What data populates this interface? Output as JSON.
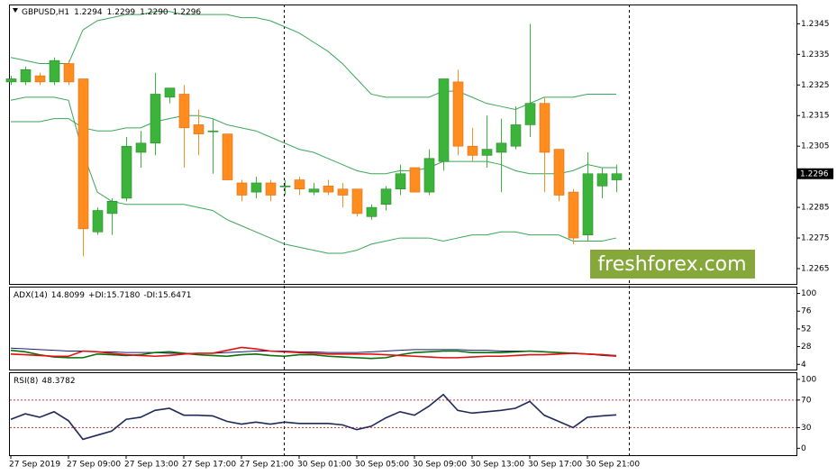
{
  "chart_data": [
    {
      "type": "candlestick",
      "title": "GBPUSD,H1",
      "last_labels": {
        "open": "1.2294",
        "high": "1.2299",
        "low": "1.2290",
        "close": "1.2296"
      },
      "categories": [
        "27 Sep 2019",
        null,
        null,
        null,
        "27 Sep 09:00",
        null,
        null,
        null,
        "27 Sep 13:00",
        null,
        null,
        null,
        "27 Sep 17:00",
        null,
        null,
        null,
        "27 Sep 21:00",
        null,
        null,
        null,
        "30 Sep 01:00",
        null,
        null,
        null,
        "30 Sep 05:00",
        null,
        null,
        null,
        "30 Sep 09:00",
        null,
        null,
        null,
        "30 Sep 13:00",
        null,
        null,
        null,
        "30 Sep 17:00",
        null,
        null,
        null,
        "30 Sep 21:00",
        null,
        null
      ],
      "open": [
        1.2326,
        1.2326,
        1.2328,
        1.2326,
        1.2332,
        1.2327,
        1.2277,
        1.2283,
        1.2288,
        1.2303,
        1.2306,
        1.2321,
        1.2322,
        1.2312,
        1.231,
        1.2309,
        1.2293,
        1.229,
        1.2293,
        1.2292,
        1.2294,
        1.229,
        1.2292,
        1.2291,
        1.2291,
        1.2282,
        1.2286,
        1.2291,
        1.2298,
        1.229,
        1.23,
        1.2326,
        1.2305,
        1.2302,
        1.2303,
        1.2305,
        1.2312,
        1.2319,
        1.2304,
        1.229,
        1.2276,
        1.2292,
        1.2294
      ],
      "high": [
        1.2328,
        1.2331,
        1.2329,
        1.2334,
        1.2333,
        1.2327,
        1.2285,
        1.2288,
        1.2308,
        1.231,
        1.2329,
        1.2324,
        1.2325,
        1.2317,
        1.2314,
        1.2309,
        1.2294,
        1.2295,
        1.2294,
        1.2294,
        1.2295,
        1.2293,
        1.2294,
        1.2293,
        1.2291,
        1.2286,
        1.2292,
        1.2299,
        1.2298,
        1.2304,
        1.2327,
        1.233,
        1.2311,
        1.2315,
        1.2314,
        1.2318,
        1.2345,
        1.2321,
        1.2304,
        1.2291,
        1.2303,
        1.2298,
        1.2299
      ],
      "low": [
        1.2325,
        1.2325,
        1.2325,
        1.2325,
        1.2325,
        1.2269,
        1.2276,
        1.2276,
        1.2287,
        1.2298,
        1.2302,
        1.2319,
        1.2298,
        1.2302,
        1.2296,
        1.2294,
        1.2287,
        1.2288,
        1.2287,
        1.2289,
        1.2289,
        1.2289,
        1.2289,
        1.2285,
        1.2282,
        1.2281,
        1.2284,
        1.2289,
        1.229,
        1.2289,
        1.2297,
        1.2302,
        1.23,
        1.2298,
        1.229,
        1.2304,
        1.2308,
        1.229,
        1.2287,
        1.2273,
        1.2274,
        1.2288,
        1.229
      ],
      "close": [
        1.2327,
        1.233,
        1.2326,
        1.2333,
        1.2326,
        1.2278,
        1.2284,
        1.2287,
        1.2305,
        1.2306,
        1.2322,
        1.2324,
        1.2311,
        1.2309,
        1.231,
        1.2294,
        1.2289,
        1.2293,
        1.2289,
        1.2292,
        1.2291,
        1.2291,
        1.229,
        1.2289,
        1.2283,
        1.2285,
        1.2291,
        1.2296,
        1.229,
        1.2301,
        1.2327,
        1.2305,
        1.2302,
        1.2304,
        1.2306,
        1.2312,
        1.2319,
        1.2303,
        1.2289,
        1.2275,
        1.2296,
        1.2296,
        1.2296
      ],
      "up_color": "#3cb43c",
      "down_color": "#ff8c1e",
      "series": [
        {
          "color": "#3aa657",
          "values": [
            1.2334,
            1.2333,
            1.2332,
            1.2332,
            1.2332,
            1.2343,
            1.2346,
            1.2347,
            1.2348,
            1.2348,
            1.2349,
            1.2349,
            1.2348,
            1.2348,
            1.2348,
            1.2348,
            1.2347,
            1.2347,
            1.2346,
            1.2344,
            1.2342,
            1.2339,
            1.2336,
            1.2332,
            1.2327,
            1.2322,
            1.2321,
            1.2321,
            1.2321,
            1.2321,
            1.2323,
            1.2323,
            1.2321,
            1.2319,
            1.2318,
            1.2317,
            1.2319,
            1.2321,
            1.2321,
            1.2321,
            1.2322,
            1.2322,
            1.2322
          ]
        },
        {
          "color": "#3aa657",
          "values": [
            1.2313,
            1.2313,
            1.2313,
            1.2314,
            1.2314,
            1.2311,
            1.231,
            1.231,
            1.2311,
            1.2311,
            1.2313,
            1.2314,
            1.2315,
            1.2315,
            1.2314,
            1.2312,
            1.2311,
            1.231,
            1.2308,
            1.2306,
            1.2304,
            1.2303,
            1.2301,
            1.2299,
            1.2297,
            1.2296,
            1.2296,
            1.2297,
            1.2297,
            1.2298,
            1.23,
            1.23,
            1.23,
            1.23,
            1.2299,
            1.2297,
            1.2296,
            1.2296,
            1.2296,
            1.2297,
            1.2299,
            1.2298,
            1.2298
          ]
        },
        {
          "color": "#3aa657",
          "values": [
            1.232,
            1.2321,
            1.2321,
            1.2321,
            1.232,
            1.2303,
            1.229,
            1.2287,
            1.2286,
            1.2286,
            1.2286,
            1.2286,
            1.2286,
            1.2285,
            1.2284,
            1.2281,
            1.2279,
            1.2277,
            1.2275,
            1.2273,
            1.2272,
            1.2271,
            1.227,
            1.227,
            1.2271,
            1.2273,
            1.2274,
            1.2275,
            1.2275,
            1.2275,
            1.2274,
            1.2275,
            1.2276,
            1.2276,
            1.2277,
            1.2277,
            1.2276,
            1.2276,
            1.2276,
            1.2274,
            1.2274,
            1.2274,
            1.2275
          ]
        }
      ],
      "ylim": [
        1.226,
        1.2351
      ],
      "yticks": [
        1.2265,
        1.2275,
        1.2285,
        1.2305,
        1.2315,
        1.2325,
        1.2335,
        1.2345
      ],
      "current_price": 1.2296,
      "watermark": "freshforex.com"
    },
    {
      "type": "line",
      "series": [
        {
          "name": "ADX(14)",
          "last_label": "14.8099",
          "color": "#1c1c6e",
          "values": [
            26,
            25,
            24,
            23,
            22,
            22,
            21,
            21,
            20,
            20,
            20,
            19,
            19,
            19,
            19,
            20,
            21,
            22,
            22,
            22,
            21,
            21,
            20,
            20,
            20,
            21,
            22,
            23,
            24,
            24,
            24,
            24,
            23,
            23,
            22,
            22,
            22,
            21,
            20,
            19,
            18,
            16,
            14.8099
          ]
        },
        {
          "name": "+DI:",
          "last_label": "15.7180",
          "color": "#0a6e0a",
          "values": [
            23,
            21,
            17,
            14,
            13,
            13,
            18,
            17,
            16,
            17,
            20,
            21,
            19,
            17,
            16,
            15,
            17,
            18,
            16,
            15,
            17,
            17,
            15,
            14,
            13,
            12,
            13,
            17,
            20,
            21,
            22,
            22,
            20,
            20,
            20,
            21,
            22,
            21,
            20,
            19,
            18,
            17,
            15.718
          ]
        },
        {
          "name": "-DI:",
          "last_label": "15.6471",
          "color": "#e01010",
          "values": [
            18,
            17,
            16,
            15,
            15,
            22,
            21,
            19,
            17,
            16,
            15,
            16,
            18,
            19,
            19,
            23,
            27,
            25,
            22,
            21,
            20,
            19,
            18,
            18,
            18,
            18,
            17,
            16,
            15,
            14,
            13,
            13,
            14,
            15,
            15,
            16,
            17,
            17,
            18,
            19,
            18,
            17,
            15.6471
          ]
        }
      ],
      "ylim": [
        -3,
        108
      ],
      "yticks": [
        4,
        28,
        52,
        76,
        100
      ]
    },
    {
      "type": "line",
      "series": [
        {
          "name": "RSI(8)",
          "last_label": "48.3782",
          "color": "#1f2a5a",
          "values": [
            42,
            50,
            45,
            53,
            40,
            13,
            19,
            25,
            42,
            45,
            55,
            58,
            48,
            48,
            47,
            39,
            35,
            38,
            35,
            38,
            36,
            36,
            36,
            34,
            27,
            32,
            44,
            53,
            48,
            61,
            78,
            55,
            51,
            53,
            55,
            58,
            68,
            48,
            39,
            30,
            45,
            47,
            48.3782
          ]
        }
      ],
      "ylim": [
        -10,
        109
      ],
      "yticks": [
        0,
        30,
        70,
        100
      ],
      "levels": [
        30,
        70
      ],
      "level_color": "#d33"
    }
  ]
}
